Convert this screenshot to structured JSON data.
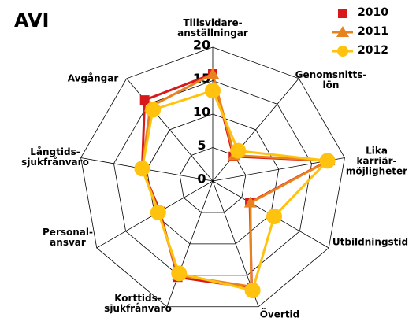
{
  "chart_data": {
    "type": "radar",
    "title": "AVI",
    "categories": [
      "Tillsvidare-\nanställningar",
      "Genomsnitts-\nlön",
      "Lika karriär-\nmöjligheter",
      "Utbildningstid",
      "Övertid",
      "Korttids-\nsjukfrånvaro",
      "Personal-\nansvar",
      "Långtids-\nsjukfrånvaro",
      "Avgångar"
    ],
    "ylim": [
      0,
      20
    ],
    "yticks": [
      0,
      5,
      10,
      15,
      20
    ],
    "grid": true,
    "series": [
      {
        "name": "2010",
        "color": "#d7191c",
        "marker": "square",
        "values": [
          16,
          4.8,
          17.5,
          6.4,
          17,
          15.3,
          9.1,
          10.7,
          15.8
        ]
      },
      {
        "name": "2011",
        "color": "#e8821e",
        "marker": "triangle",
        "values": [
          16,
          5,
          17.6,
          6.5,
          16.8,
          15,
          9.3,
          10.7,
          14.5
        ]
      },
      {
        "name": "2012",
        "color": "#ffc20e",
        "marker": "circle",
        "values": [
          13.5,
          5.9,
          17.4,
          10.6,
          17.4,
          14.7,
          9.4,
          10.7,
          13.9
        ]
      }
    ]
  }
}
